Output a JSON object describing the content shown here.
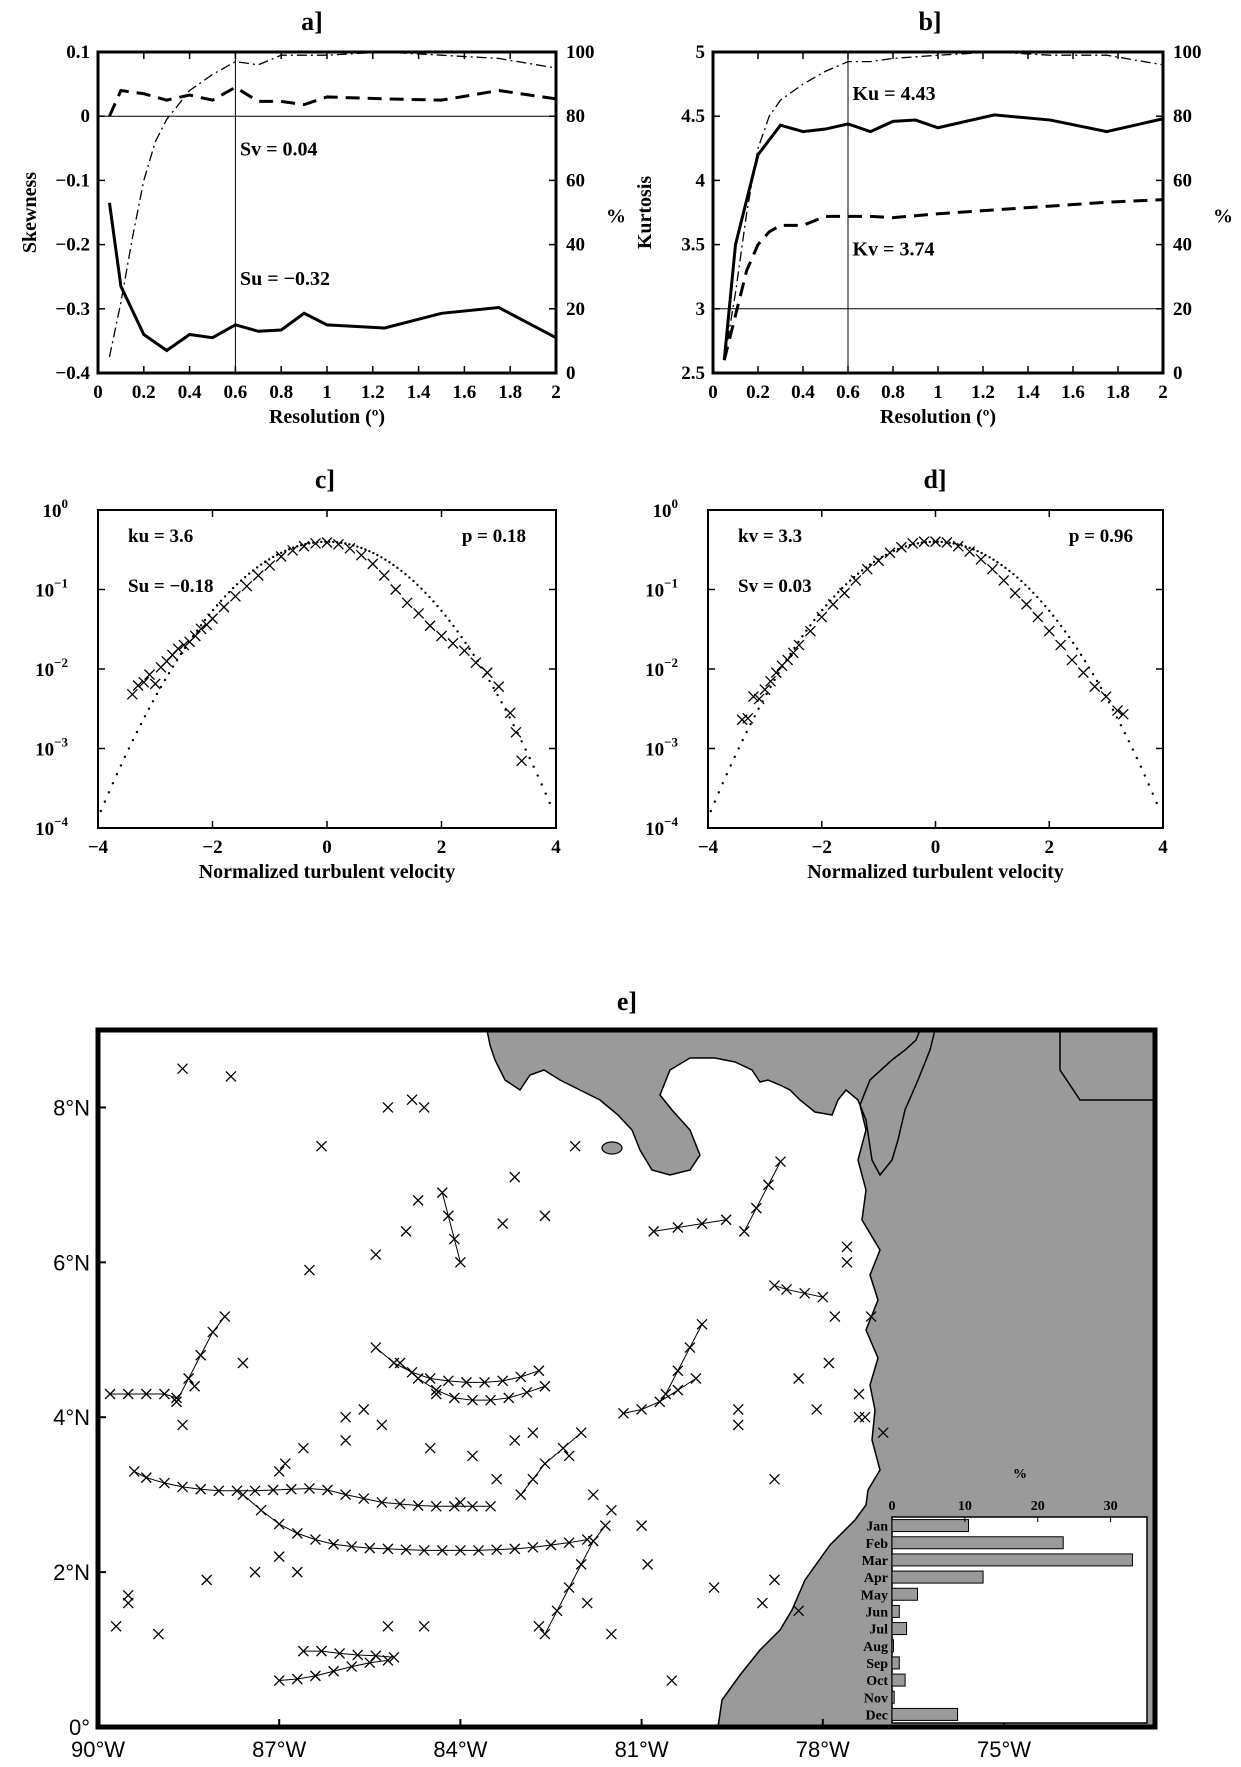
{
  "chart_data": [
    {
      "panel": "a]",
      "type": "line",
      "xlabel": "Resolution (º)",
      "ylabel": "Skewness",
      "y2label": "%",
      "xlim": [
        0,
        2
      ],
      "ylim": [
        -0.4,
        0.1
      ],
      "y2lim": [
        0,
        100
      ],
      "xticks": [
        "0",
        "0.2",
        "0.4",
        "0.6",
        "0.8",
        "1",
        "1.2",
        "1.4",
        "1.6",
        "1.8",
        "2"
      ],
      "yticks": [
        "0.1",
        "0",
        "−0.1",
        "−0.2",
        "−0.3",
        "−0.4"
      ],
      "y2ticks": [
        "100",
        "80",
        "60",
        "40",
        "20",
        "0"
      ],
      "hline": 0,
      "vline": 0.6,
      "annotations": [
        {
          "text": "Sv = 0.04",
          "x": 0.62,
          "y": -0.05
        },
        {
          "text": "Su = −0.32",
          "x": 0.62,
          "y": -0.252
        }
      ],
      "series": [
        {
          "style": "solid",
          "axis": "left",
          "x": [
            0.05,
            0.1,
            0.2,
            0.3,
            0.4,
            0.5,
            0.6,
            0.7,
            0.8,
            0.9,
            1,
            1.25,
            1.5,
            1.75,
            2
          ],
          "values": [
            -0.135,
            -0.265,
            -0.34,
            -0.365,
            -0.34,
            -0.345,
            -0.325,
            -0.335,
            -0.333,
            -0.307,
            -0.325,
            -0.33,
            -0.307,
            -0.298,
            -0.345
          ]
        },
        {
          "style": "dashed",
          "axis": "left",
          "x": [
            0.05,
            0.1,
            0.2,
            0.3,
            0.4,
            0.5,
            0.6,
            0.7,
            0.8,
            0.9,
            1,
            1.25,
            1.5,
            1.75,
            2
          ],
          "values": [
            0.0,
            0.04,
            0.035,
            0.025,
            0.033,
            0.025,
            0.045,
            0.023,
            0.023,
            0.018,
            0.03,
            0.027,
            0.025,
            0.04,
            0.027
          ]
        },
        {
          "style": "dashdot",
          "axis": "right",
          "x": [
            0.05,
            0.1,
            0.15,
            0.2,
            0.25,
            0.3,
            0.4,
            0.5,
            0.6,
            0.7,
            0.8,
            1,
            1.25,
            1.5,
            1.75,
            2
          ],
          "values": [
            5,
            22,
            42,
            60,
            72,
            79,
            88,
            93,
            97,
            96,
            99,
            99,
            100,
            99,
            98,
            95
          ]
        }
      ]
    },
    {
      "panel": "b]",
      "type": "line",
      "xlabel": "Resolution (º)",
      "ylabel": "Kurtosis",
      "y2label": "%",
      "xlim": [
        0,
        2
      ],
      "ylim": [
        2.5,
        5
      ],
      "y2lim": [
        0,
        100
      ],
      "xticks": [
        "0",
        "0.2",
        "0.4",
        "0.6",
        "0.8",
        "1",
        "1.2",
        "1.4",
        "1.6",
        "1.8",
        "2"
      ],
      "yticks": [
        "5",
        "4.5",
        "4",
        "3.5",
        "3",
        "2.5"
      ],
      "y2ticks": [
        "100",
        "80",
        "60",
        "40",
        "20",
        "0"
      ],
      "hline": 3,
      "vline": 0.6,
      "annotations": [
        {
          "text": "Ku = 4.43",
          "x": 0.62,
          "y": 4.68
        },
        {
          "text": "Kv = 3.74",
          "x": 0.62,
          "y": 3.47
        }
      ],
      "series": [
        {
          "style": "solid",
          "axis": "left",
          "x": [
            0.05,
            0.1,
            0.2,
            0.3,
            0.4,
            0.5,
            0.6,
            0.7,
            0.8,
            0.9,
            1,
            1.25,
            1.5,
            1.75,
            2
          ],
          "values": [
            2.6,
            3.5,
            4.2,
            4.43,
            4.38,
            4.4,
            4.44,
            4.38,
            4.46,
            4.47,
            4.41,
            4.51,
            4.47,
            4.38,
            4.48
          ]
        },
        {
          "style": "dashed",
          "axis": "left",
          "x": [
            0.05,
            0.1,
            0.15,
            0.2,
            0.25,
            0.3,
            0.4,
            0.5,
            0.6,
            0.7,
            0.8,
            1,
            1.25,
            1.5,
            1.75,
            2
          ],
          "values": [
            2.6,
            2.95,
            3.3,
            3.5,
            3.6,
            3.65,
            3.65,
            3.72,
            3.72,
            3.72,
            3.71,
            3.74,
            3.77,
            3.8,
            3.83,
            3.85
          ]
        },
        {
          "style": "dashdot",
          "axis": "right",
          "x": [
            0.05,
            0.1,
            0.15,
            0.2,
            0.25,
            0.3,
            0.4,
            0.5,
            0.6,
            0.7,
            0.8,
            1,
            1.25,
            1.5,
            1.75,
            2
          ],
          "values": [
            4,
            25,
            50,
            70,
            80,
            85,
            90,
            94,
            97,
            97,
            98,
            99,
            100,
            99,
            99,
            96
          ]
        }
      ]
    },
    {
      "panel": "c]",
      "type": "scatter",
      "xlabel": "Normalized turbulent velocity",
      "ylabel": "",
      "xlim": [
        -4,
        4
      ],
      "ylim_log10": [
        -4,
        0
      ],
      "xticks": [
        "−4",
        "−2",
        "0",
        "2",
        "4"
      ],
      "yticks": [
        {
          "base": "10",
          "exp": "0"
        },
        {
          "base": "10",
          "exp": "−1"
        },
        {
          "base": "10",
          "exp": "−2"
        },
        {
          "base": "10",
          "exp": "−3"
        },
        {
          "base": "10",
          "exp": "−4"
        }
      ],
      "annotations": [
        "ku = 3.6",
        "Su = −0.18",
        "p = 0.18"
      ],
      "reference_curve": "gaussian (dotted)",
      "points": {
        "x": [
          -3.4,
          -3.3,
          -3.2,
          -3.1,
          -3.0,
          -2.9,
          -2.8,
          -2.7,
          -2.6,
          -2.5,
          -2.4,
          -2.3,
          -2.2,
          -2.1,
          -2.0,
          -1.8,
          -1.6,
          -1.4,
          -1.2,
          -1.0,
          -0.8,
          -0.6,
          -0.4,
          -0.2,
          0.0,
          0.2,
          0.4,
          0.6,
          0.8,
          1.0,
          1.2,
          1.4,
          1.6,
          1.8,
          2.0,
          2.2,
          2.4,
          2.6,
          2.8,
          3.0,
          3.2,
          3.3,
          3.4
        ],
        "y": [
          0.0048,
          0.0062,
          0.0068,
          0.0085,
          0.0065,
          0.0105,
          0.0125,
          0.015,
          0.018,
          0.02,
          0.022,
          0.026,
          0.032,
          0.036,
          0.043,
          0.06,
          0.082,
          0.11,
          0.15,
          0.2,
          0.26,
          0.31,
          0.35,
          0.38,
          0.39,
          0.37,
          0.33,
          0.27,
          0.21,
          0.15,
          0.1,
          0.068,
          0.05,
          0.035,
          0.026,
          0.021,
          0.017,
          0.012,
          0.009,
          0.006,
          0.0028,
          0.0016,
          0.0007
        ]
      }
    },
    {
      "panel": "d]",
      "type": "scatter",
      "xlabel": "Normalized turbulent velocity",
      "ylabel": "",
      "xlim": [
        -4,
        4
      ],
      "ylim_log10": [
        -4,
        0
      ],
      "xticks": [
        "−4",
        "−2",
        "0",
        "2",
        "4"
      ],
      "yticks": [
        {
          "base": "10",
          "exp": "0"
        },
        {
          "base": "10",
          "exp": "−1"
        },
        {
          "base": "10",
          "exp": "−2"
        },
        {
          "base": "10",
          "exp": "−3"
        },
        {
          "base": "10",
          "exp": "−4"
        }
      ],
      "annotations": [
        "kv = 3.3",
        "Sv = 0.03",
        "p = 0.96"
      ],
      "reference_curve": "gaussian (dotted)",
      "points": {
        "x": [
          -3.4,
          -3.3,
          -3.2,
          -3.1,
          -3.0,
          -2.9,
          -2.8,
          -2.7,
          -2.6,
          -2.5,
          -2.4,
          -2.2,
          -2.0,
          -1.8,
          -1.6,
          -1.4,
          -1.2,
          -1.0,
          -0.8,
          -0.6,
          -0.4,
          -0.2,
          0.0,
          0.2,
          0.4,
          0.6,
          0.8,
          1.0,
          1.2,
          1.4,
          1.6,
          1.8,
          2.0,
          2.2,
          2.4,
          2.6,
          2.8,
          3.0,
          3.2,
          3.3
        ],
        "y": [
          0.0023,
          0.0024,
          0.0045,
          0.0042,
          0.0055,
          0.007,
          0.009,
          0.011,
          0.013,
          0.016,
          0.02,
          0.03,
          0.045,
          0.065,
          0.09,
          0.13,
          0.18,
          0.23,
          0.29,
          0.34,
          0.38,
          0.4,
          0.4,
          0.39,
          0.35,
          0.3,
          0.24,
          0.18,
          0.13,
          0.09,
          0.065,
          0.045,
          0.03,
          0.02,
          0.013,
          0.009,
          0.006,
          0.0045,
          0.003,
          0.0027
        ]
      }
    },
    {
      "panel": "e]",
      "type": "scatter",
      "xlim": [
        -90,
        -72.5
      ],
      "ylim": [
        0,
        9
      ],
      "xticks": [
        "90°W",
        "87°W",
        "84°W",
        "81°W",
        "78°W",
        "75°W"
      ],
      "yticks": [
        "8°N",
        "6°N",
        "4°N",
        "2°N",
        "0°"
      ],
      "tracks": [
        {
          "x": [
            -89.4,
            -89.2,
            -88.9,
            -88.6,
            -88.3,
            -88.0,
            -87.7,
            -87.4,
            -87.1,
            -86.8,
            -86.5,
            -86.2,
            -85.9,
            -85.6,
            -85.3,
            -85.0,
            -84.7,
            -84.4,
            -84.1,
            -83.8,
            -83.5
          ],
          "y": [
            3.3,
            3.22,
            3.15,
            3.1,
            3.07,
            3.05,
            3.05,
            3.05,
            3.06,
            3.07,
            3.08,
            3.06,
            3.0,
            2.95,
            2.9,
            2.88,
            2.86,
            2.85,
            2.85,
            2.85,
            2.85
          ]
        },
        {
          "x": [
            -87.6,
            -87.3,
            -87.0,
            -86.7,
            -86.4,
            -86.1,
            -85.8,
            -85.5,
            -85.2,
            -84.9,
            -84.6,
            -84.3,
            -84.0,
            -83.7,
            -83.4,
            -83.1,
            -82.8,
            -82.5,
            -82.2,
            -81.9
          ],
          "y": [
            3.0,
            2.8,
            2.62,
            2.5,
            2.42,
            2.36,
            2.33,
            2.31,
            2.3,
            2.29,
            2.28,
            2.28,
            2.28,
            2.28,
            2.29,
            2.3,
            2.32,
            2.35,
            2.38,
            2.42
          ]
        },
        {
          "x": [
            -85.4,
            -85.1,
            -84.8,
            -84.5,
            -84.2,
            -83.9,
            -83.6,
            -83.3,
            -83.0,
            -82.7
          ],
          "y": [
            4.9,
            4.7,
            4.58,
            4.5,
            4.47,
            4.45,
            4.45,
            4.47,
            4.52,
            4.6
          ]
        },
        {
          "x": [
            -85.0,
            -84.7,
            -84.4,
            -84.1,
            -83.8,
            -83.5,
            -83.2,
            -82.9,
            -82.6
          ],
          "y": [
            4.7,
            4.5,
            4.35,
            4.25,
            4.22,
            4.22,
            4.25,
            4.32,
            4.4
          ]
        },
        {
          "x": [
            -87.0,
            -86.7,
            -86.4,
            -86.1,
            -85.8,
            -85.5,
            -85.2
          ],
          "y": [
            0.6,
            0.62,
            0.66,
            0.72,
            0.78,
            0.83,
            0.86
          ]
        },
        {
          "x": [
            -86.6,
            -86.3,
            -86.0,
            -85.7,
            -85.4,
            -85.1
          ],
          "y": [
            0.98,
            0.98,
            0.95,
            0.93,
            0.92,
            0.9
          ]
        },
        {
          "x": [
            -88.7,
            -88.5,
            -88.3,
            -88.1,
            -87.9
          ],
          "y": [
            4.2,
            4.5,
            4.8,
            5.1,
            5.3
          ]
        },
        {
          "x": [
            -88.7,
            -88.9,
            -89.2,
            -89.5,
            -89.8
          ],
          "y": [
            4.25,
            4.3,
            4.3,
            4.3,
            4.3
          ]
        },
        {
          "x": [
            -84.3,
            -84.2,
            -84.1,
            -84.0
          ],
          "y": [
            6.9,
            6.6,
            6.3,
            6.0
          ]
        },
        {
          "x": [
            -82.6,
            -82.4,
            -82.2,
            -82.0,
            -81.8,
            -81.6
          ],
          "y": [
            1.2,
            1.5,
            1.8,
            2.1,
            2.4,
            2.6
          ]
        },
        {
          "x": [
            -81.3,
            -81.0,
            -80.7,
            -80.4,
            -80.1
          ],
          "y": [
            4.05,
            4.1,
            4.2,
            4.35,
            4.5
          ]
        },
        {
          "x": [
            -80.6,
            -80.4,
            -80.2,
            -80.0
          ],
          "y": [
            4.3,
            4.6,
            4.9,
            5.2
          ]
        },
        {
          "x": [
            -80.8,
            -80.4,
            -80.0,
            -79.6
          ],
          "y": [
            6.4,
            6.45,
            6.5,
            6.55
          ]
        },
        {
          "x": [
            -79.3,
            -79.1,
            -78.9,
            -78.7
          ],
          "y": [
            6.4,
            6.7,
            7.0,
            7.3
          ]
        },
        {
          "x": [
            -78.8,
            -78.6,
            -78.3,
            -78.0
          ],
          "y": [
            5.7,
            5.65,
            5.6,
            5.55
          ]
        },
        {
          "x": [
            -83.0,
            -82.8,
            -82.6,
            -82.3,
            -82.0
          ],
          "y": [
            3.0,
            3.2,
            3.4,
            3.6,
            3.8
          ]
        }
      ],
      "points": {
        "x": [
          -88.6,
          -87.8,
          -86.3,
          -85.2,
          -84.6,
          -84.8,
          -83.1,
          -82.1,
          -82.6,
          -83.3,
          -84.9,
          -84.7,
          -85.4,
          -86.5,
          -87.6,
          -88.4,
          -88.6,
          -86.9,
          -87.0,
          -86.6,
          -85.9,
          -84.5,
          -83.8,
          -84.0,
          -83.4,
          -82.8,
          -82.2,
          -81.9,
          -81.8,
          -81.5,
          -80.9,
          -81.0,
          -79.8,
          -79.0,
          -78.8,
          -77.9,
          -77.6,
          -77.6,
          -77.2,
          -77.8,
          -78.4,
          -78.1,
          -77.4,
          -77.4,
          -77.3,
          -77.0,
          -79.4,
          -81.5,
          -82.7,
          -80.5,
          -84.6,
          -85.2,
          -87.4,
          -88.2,
          -89.5,
          -89.7,
          -89.5,
          -89.0,
          -87.0,
          -86.7,
          -85.6,
          -85.9,
          -85.3,
          -84.4,
          -83.1,
          -79.4,
          -78.8,
          -78.4
        ],
        "y": [
          8.5,
          8.4,
          7.5,
          8.0,
          8.0,
          8.1,
          7.1,
          7.5,
          6.6,
          6.5,
          6.4,
          6.8,
          6.1,
          5.9,
          4.7,
          4.4,
          3.9,
          3.4,
          3.3,
          3.6,
          3.7,
          3.6,
          3.5,
          2.9,
          3.2,
          3.8,
          3.5,
          1.6,
          3.0,
          2.8,
          2.1,
          2.6,
          1.8,
          1.6,
          1.9,
          4.7,
          6.2,
          6.0,
          5.3,
          5.3,
          4.5,
          4.1,
          4.3,
          4.0,
          4.0,
          3.8,
          3.9,
          1.2,
          1.3,
          0.6,
          1.3,
          1.3,
          2.0,
          1.9,
          1.6,
          1.3,
          1.7,
          1.2,
          2.2,
          2.0,
          4.1,
          4.0,
          3.9,
          4.3,
          3.7,
          4.1,
          3.2,
          1.5
        ]
      },
      "inset": {
        "type": "bar",
        "orientation": "horizontal",
        "xlabel": "%",
        "xlim": [
          0,
          35
        ],
        "xticks": [
          "0",
          "10",
          "20",
          "30"
        ],
        "categories": [
          "Jan",
          "Feb",
          "Mar",
          "Apr",
          "May",
          "Jun",
          "Jul",
          "Aug",
          "Sep",
          "Oct",
          "Nov",
          "Dec"
        ],
        "values": [
          10.5,
          23.5,
          33,
          12.5,
          3.5,
          1,
          2,
          0.2,
          1,
          1.8,
          0.3,
          9
        ]
      },
      "colors": {
        "land": "#9a9a9a",
        "ocean": "#ffffff",
        "marks": "#000000"
      }
    }
  ]
}
